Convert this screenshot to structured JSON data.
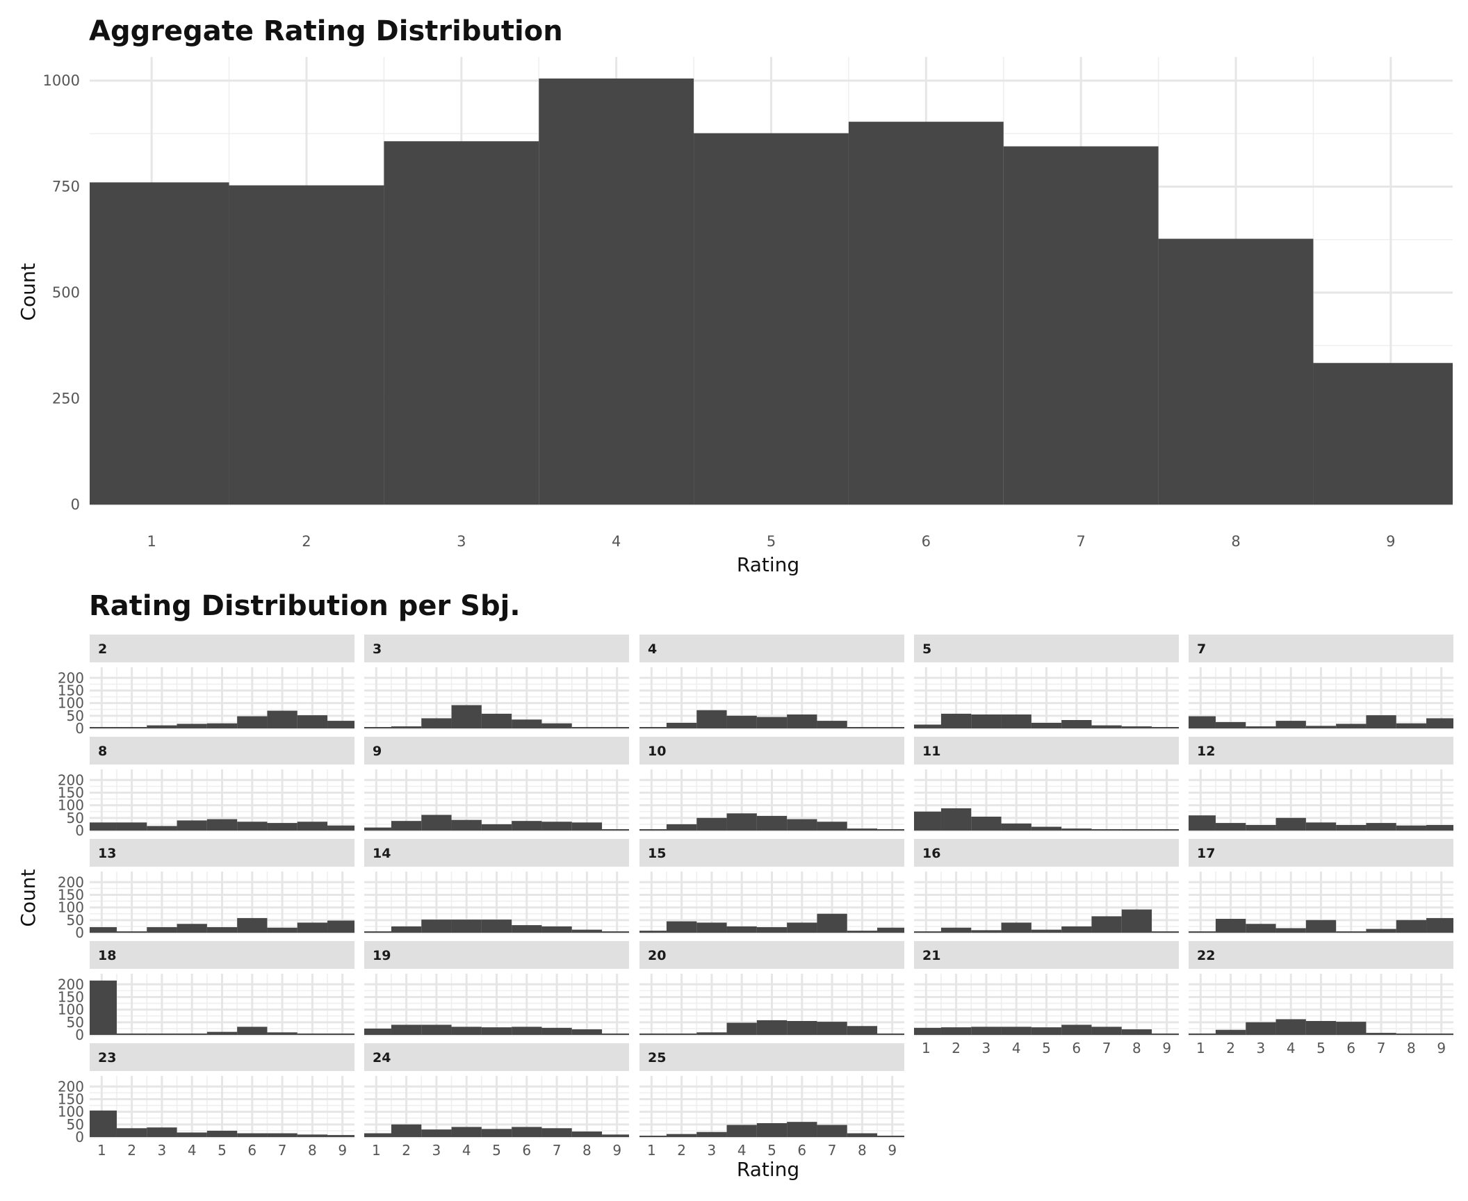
{
  "chart_data": [
    {
      "type": "bar",
      "title": "Aggregate Rating Distribution",
      "xlabel": "Rating",
      "ylabel": "Count",
      "categories": [
        1,
        2,
        3,
        4,
        5,
        6,
        7,
        8,
        9
      ],
      "values": [
        760,
        753,
        857,
        1005,
        876,
        903,
        845,
        627,
        334
      ],
      "xlim": [
        0.6,
        9.4
      ],
      "ylim": [
        0,
        1000
      ],
      "yticks": [
        0,
        250,
        500,
        750,
        1000
      ],
      "bar_color": "#474747",
      "grid": true
    },
    {
      "type": "bar",
      "title": "Rating Distribution per Sbj.",
      "xlabel": "Rating",
      "ylabel": "Count",
      "categories": [
        1,
        2,
        3,
        4,
        5,
        6,
        7,
        8,
        9
      ],
      "ylim": [
        0,
        220
      ],
      "yticks": [
        0,
        50,
        100,
        150,
        200
      ],
      "bar_color": "#474747",
      "strip_color": "#e0e0e0",
      "grid": true,
      "series": [
        {
          "name": "2",
          "values": [
            5,
            2,
            12,
            18,
            20,
            48,
            70,
            52,
            30
          ]
        },
        {
          "name": "3",
          "values": [
            2,
            8,
            40,
            92,
            58,
            35,
            20,
            5,
            2
          ]
        },
        {
          "name": "4",
          "values": [
            0,
            22,
            72,
            50,
            45,
            55,
            30,
            3,
            0
          ]
        },
        {
          "name": "5",
          "values": [
            15,
            58,
            55,
            55,
            22,
            33,
            12,
            8,
            2
          ]
        },
        {
          "name": "7",
          "values": [
            48,
            25,
            8,
            30,
            10,
            18,
            52,
            20,
            40
          ]
        },
        {
          "name": "8",
          "values": [
            32,
            32,
            18,
            40,
            45,
            35,
            30,
            35,
            20
          ]
        },
        {
          "name": "9",
          "values": [
            12,
            38,
            62,
            42,
            25,
            38,
            35,
            32,
            0
          ]
        },
        {
          "name": "10",
          "values": [
            2,
            25,
            50,
            68,
            58,
            45,
            35,
            8,
            0
          ]
        },
        {
          "name": "11",
          "values": [
            75,
            88,
            55,
            28,
            15,
            8,
            5,
            5,
            2
          ]
        },
        {
          "name": "12",
          "values": [
            60,
            30,
            22,
            50,
            32,
            22,
            30,
            20,
            22
          ]
        },
        {
          "name": "13",
          "values": [
            22,
            5,
            22,
            35,
            22,
            58,
            20,
            40,
            48
          ]
        },
        {
          "name": "14",
          "values": [
            5,
            25,
            52,
            52,
            52,
            30,
            25,
            12,
            0
          ]
        },
        {
          "name": "15",
          "values": [
            8,
            45,
            40,
            25,
            22,
            40,
            75,
            8,
            20
          ]
        },
        {
          "name": "16",
          "values": [
            2,
            20,
            10,
            40,
            12,
            25,
            65,
            92,
            5
          ]
        },
        {
          "name": "17",
          "values": [
            0,
            55,
            35,
            18,
            50,
            0,
            15,
            50,
            58
          ]
        },
        {
          "name": "18",
          "values": [
            215,
            0,
            0,
            0,
            12,
            32,
            10,
            5,
            2
          ]
        },
        {
          "name": "19",
          "values": [
            25,
            40,
            40,
            32,
            30,
            32,
            28,
            22,
            0
          ]
        },
        {
          "name": "20",
          "values": [
            0,
            2,
            10,
            48,
            58,
            55,
            52,
            35,
            2
          ]
        },
        {
          "name": "21",
          "values": [
            28,
            30,
            32,
            32,
            30,
            40,
            32,
            22,
            5
          ]
        },
        {
          "name": "22",
          "values": [
            5,
            20,
            50,
            62,
            55,
            52,
            8,
            5,
            0
          ]
        },
        {
          "name": "23",
          "values": [
            105,
            35,
            38,
            18,
            25,
            15,
            15,
            10,
            8
          ]
        },
        {
          "name": "24",
          "values": [
            15,
            50,
            30,
            40,
            32,
            40,
            35,
            22,
            10
          ]
        },
        {
          "name": "25",
          "values": [
            0,
            12,
            20,
            48,
            55,
            60,
            48,
            15,
            0
          ]
        }
      ]
    }
  ]
}
